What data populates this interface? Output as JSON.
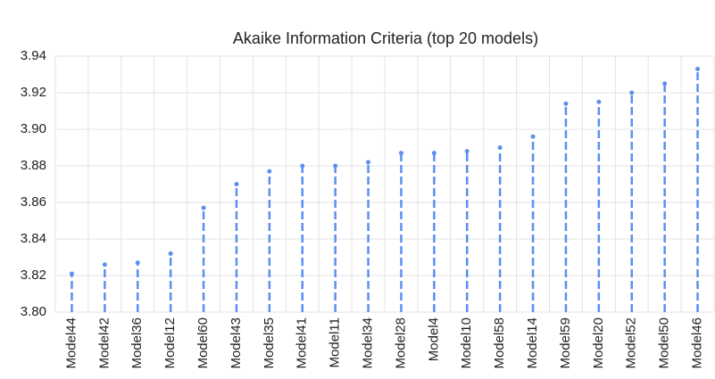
{
  "chart_data": {
    "type": "lollipop",
    "title": "Akaike Information Criteria (top 20 models)",
    "categories": [
      "Model44",
      "Model42",
      "Model36",
      "Model12",
      "Model60",
      "Model43",
      "Model35",
      "Model41",
      "Model11",
      "Model34",
      "Model28",
      "Model4",
      "Model10",
      "Model58",
      "Model14",
      "Model59",
      "Model20",
      "Model52",
      "Model50",
      "Model46"
    ],
    "values": [
      3.821,
      3.826,
      3.827,
      3.832,
      3.857,
      3.87,
      3.877,
      3.88,
      3.88,
      3.882,
      3.887,
      3.887,
      3.888,
      3.89,
      3.896,
      3.914,
      3.915,
      3.92,
      3.925,
      3.933
    ],
    "color": "#5b8ff0",
    "ylim": [
      3.8,
      3.94
    ],
    "yticks": [
      {
        "value": 3.8,
        "label": "3.80"
      },
      3.82,
      3.84,
      3.86,
      3.88,
      {
        "value": 3.9,
        "label": "3.90"
      },
      3.92,
      3.94
    ],
    "grid": true
  }
}
